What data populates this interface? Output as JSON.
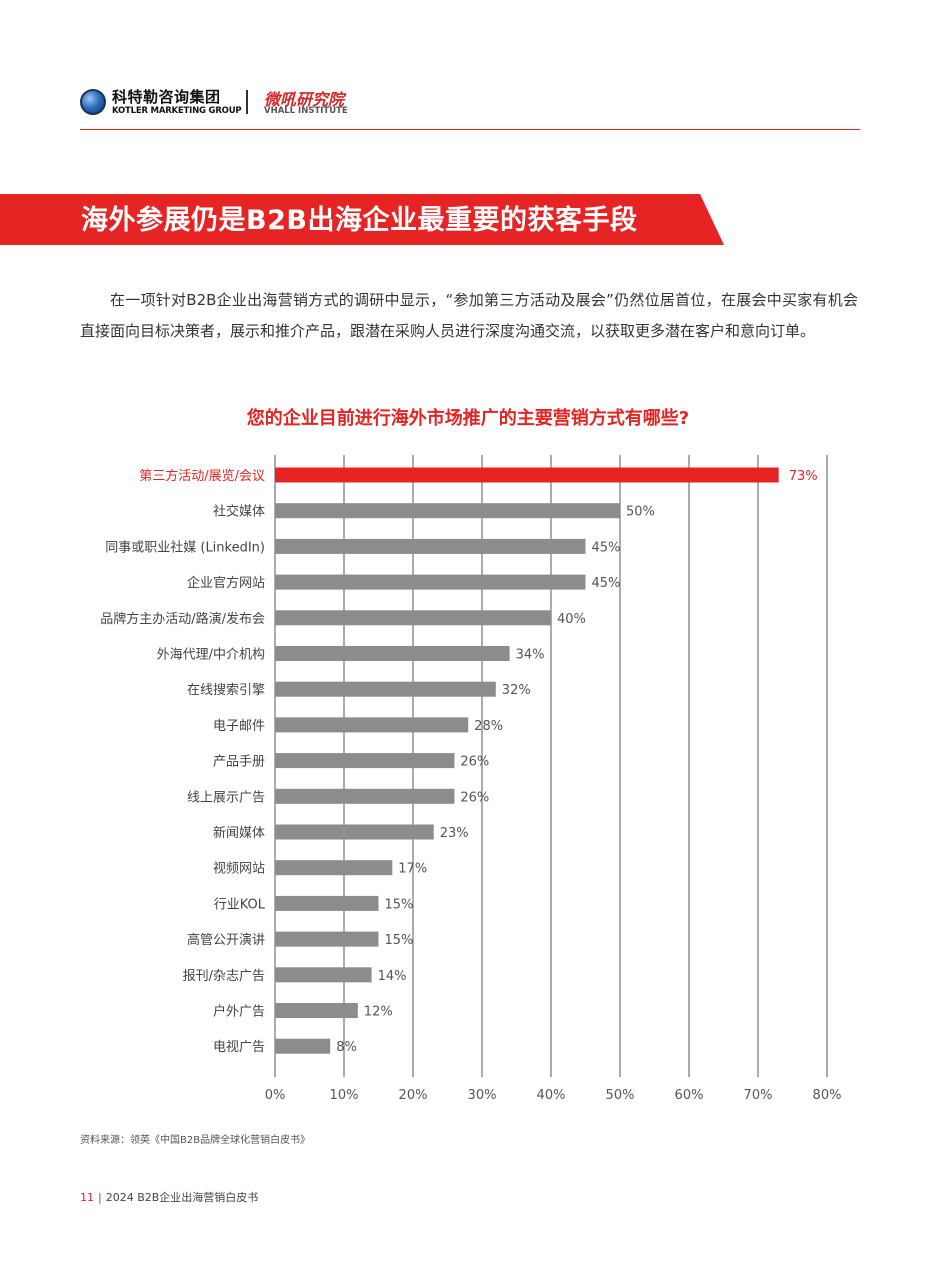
{
  "header": {
    "logo_cn": "科特勒咨询集团",
    "logo_en": "KOTLER MARKETING GROUP",
    "logo2_cn": "微吼研究院",
    "logo2_en": "VHALL INSTITUTE",
    "brand_red": "#d7282a"
  },
  "title": "海外参展仍是B2B出海企业最重要的获客手段",
  "intro": "在一项针对B2B企业出海营销方式的调研中显示，“参加第三方活动及展会”仍然位居首位，在展会中买家有机会直接面向目标决策者，展示和推介产品，跟潜在采购人员进行深度沟通交流，以获取更多潜在客户和意向订单。",
  "chart_data": {
    "type": "bar",
    "orientation": "horizontal",
    "title": "您的企业目前进行海外市场推广的主要营销方式有哪些?",
    "categories": [
      "第三方活动/展览/会议",
      "社交媒体",
      "同事或职业社媒 (LinkedIn)",
      "企业官方网站",
      "品牌方主办活动/路演/发布会",
      "外海代理/中介机构",
      "在线搜索引擎",
      "电子邮件",
      "产品手册",
      "线上展示广告",
      "新闻媒体",
      "视频网站",
      "行业KOL",
      "高管公开演讲",
      "报刊/杂志广告",
      "户外广告",
      "电视广告"
    ],
    "values": [
      73,
      50,
      45,
      45,
      40,
      34,
      32,
      28,
      26,
      26,
      23,
      17,
      15,
      15,
      14,
      12,
      8
    ],
    "value_labels": [
      "73%",
      "50%",
      "45%",
      "45%",
      "40%",
      "34%",
      "32%",
      "28%",
      "26%",
      "26%",
      "23%",
      "17%",
      "15%",
      "15%",
      "14%",
      "12%",
      "8%"
    ],
    "xlim": [
      0,
      80
    ],
    "x_ticks": [
      "0%",
      "10%",
      "20%",
      "30%",
      "40%",
      "50%",
      "60%",
      "70%",
      "80%"
    ],
    "grid": true,
    "highlight_index": 0,
    "highlight_color": "#e52423",
    "bar_color": "#8c8c8c"
  },
  "source": "资料来源：领英《中国B2B品牌全球化营销白皮书》",
  "footer": {
    "page": "11",
    "sep": "|",
    "doc_title": "2024 B2B企业出海营销白皮书"
  }
}
